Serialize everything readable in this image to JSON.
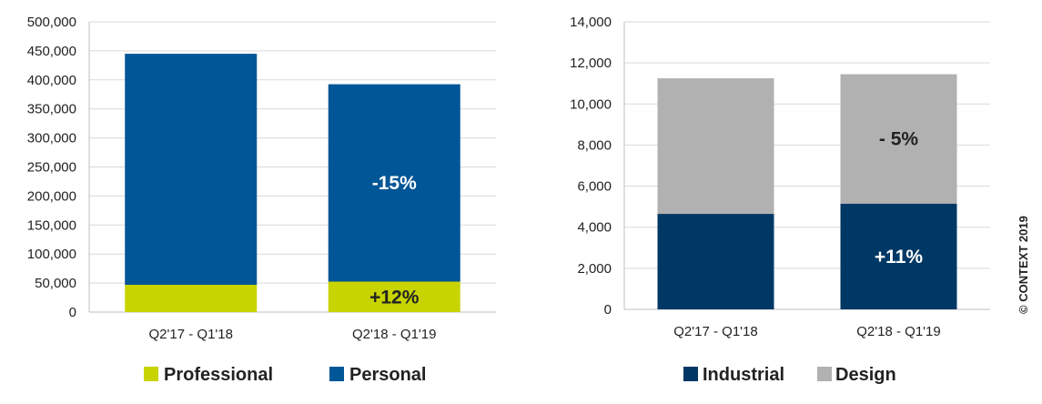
{
  "copyright": "© CONTEXT 2019",
  "chart_data": [
    {
      "type": "bar",
      "stacked": true,
      "categories": [
        "Q2'17 - Q1'18",
        "Q2'18 - Q1'19"
      ],
      "series": [
        {
          "name": "Professional",
          "values": [
            47000,
            52500
          ],
          "color": "#c8d400"
        },
        {
          "name": "Personal",
          "values": [
            398000,
            340000
          ],
          "color": "#005696"
        }
      ],
      "ylim": [
        0,
        500000
      ],
      "yticks": [
        0,
        50000,
        100000,
        150000,
        200000,
        250000,
        300000,
        350000,
        400000,
        450000,
        500000
      ],
      "ytick_labels": [
        "0",
        "50,000",
        "100,000",
        "150,000",
        "200,000",
        "250,000",
        "300,000",
        "350,000",
        "400,000",
        "450,000",
        "500,000"
      ],
      "grid": true,
      "legend": "bottom",
      "annotations": [
        {
          "text": "+12%",
          "category": 1,
          "series": 0,
          "color": "#222222"
        },
        {
          "text": "-15%",
          "category": 1,
          "series": 1,
          "color": "#ffffff"
        }
      ]
    },
    {
      "type": "bar",
      "stacked": true,
      "categories": [
        "Q2'17 - Q1'18",
        "Q2'18 - Q1'19"
      ],
      "series": [
        {
          "name": "Industrial",
          "values": [
            4650,
            5150
          ],
          "color": "#003865"
        },
        {
          "name": "Design",
          "values": [
            6600,
            6300
          ],
          "color": "#b1b1b1"
        }
      ],
      "ylim": [
        0,
        14000
      ],
      "yticks": [
        0,
        2000,
        4000,
        6000,
        8000,
        10000,
        12000,
        14000
      ],
      "ytick_labels": [
        "0",
        "2,000",
        "4,000",
        "6,000",
        "8,000",
        "10,000",
        "12,000",
        "14,000"
      ],
      "grid": true,
      "legend": "bottom",
      "annotations": [
        {
          "text": "+11%",
          "category": 1,
          "series": 0,
          "color": "#ffffff"
        },
        {
          "text": "-  5%",
          "category": 1,
          "series": 1,
          "color": "#222222"
        }
      ]
    }
  ]
}
